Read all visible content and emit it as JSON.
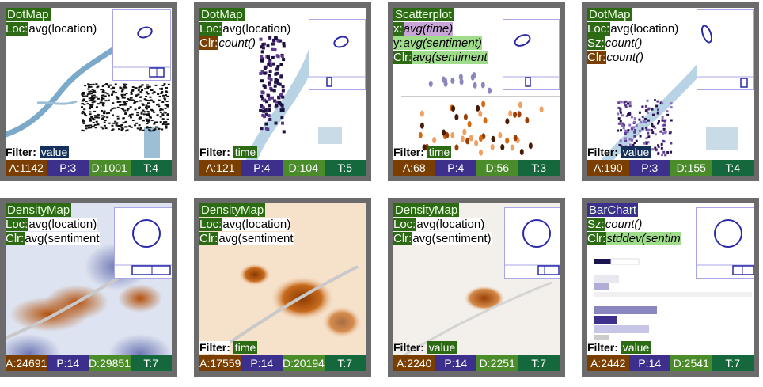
{
  "tiles": [
    {
      "title": "DotMap",
      "enc": [
        {
          "k": "Loc:",
          "v": "avg(location)"
        }
      ],
      "filter": "value",
      "stats": [
        "A:1142",
        "P:3",
        "D:1001",
        "T:4"
      ],
      "kind": "dotmap1"
    },
    {
      "title": "DotMap",
      "enc": [
        {
          "k": "Loc:",
          "v": "avg(location)"
        },
        {
          "k": "Clr:",
          "v": "count()"
        }
      ],
      "filter": "time",
      "stats": [
        "A:121",
        "P:4",
        "D:104",
        "T:5"
      ],
      "kind": "dotmap2"
    },
    {
      "title": "Scatterplot",
      "enc": [
        {
          "k": "x:",
          "v": "avg(time)"
        },
        {
          "k": "y:",
          "v": "avg(sentiment)"
        },
        {
          "k": "Clr:",
          "v": "avg(sentiment"
        }
      ],
      "filter": "time",
      "stats": [
        "A:68",
        "P:4",
        "D:56",
        "T:3"
      ],
      "kind": "scatter"
    },
    {
      "title": "DotMap",
      "enc": [
        {
          "k": "Loc:",
          "v": "avg(location)"
        },
        {
          "k": "Sz:",
          "v": "count()"
        },
        {
          "k": "Clr:",
          "v": "count()"
        }
      ],
      "filter": "value",
      "stats": [
        "A:190",
        "P:3",
        "D:155",
        "T:4"
      ],
      "kind": "dotmap3"
    },
    {
      "title": "DensityMap",
      "enc": [
        {
          "k": "Loc:",
          "v": "avg(location)"
        },
        {
          "k": "Clr:",
          "v": "avg(sentiment"
        }
      ],
      "filter": "",
      "stats": [
        "A:24691",
        "P:14",
        "D:29851",
        "T:7"
      ],
      "kind": "density1"
    },
    {
      "title": "DensityMap",
      "enc": [
        {
          "k": "Loc:",
          "v": "avg(location)"
        },
        {
          "k": "Clr:",
          "v": "avg(sentiment"
        }
      ],
      "filter": "time",
      "stats": [
        "A:17559",
        "P:14",
        "D:20194",
        "T:7"
      ],
      "kind": "density2"
    },
    {
      "title": "DensityMap",
      "enc": [
        {
          "k": "Loc:",
          "v": "avg(location)"
        },
        {
          "k": "Clr:",
          "v": "avg(sentiment)"
        }
      ],
      "filter": "value",
      "stats": [
        "A:2240",
        "P:14",
        "D:2251",
        "T:7"
      ],
      "kind": "density3"
    },
    {
      "title": "BarChart",
      "enc": [
        {
          "k": "Sz:",
          "v": "count()"
        },
        {
          "k": "Clr:",
          "v": "stddev(sentim"
        }
      ],
      "filter": "value",
      "stats": [
        "A:2442",
        "P:14",
        "D:2541",
        "T:7"
      ],
      "kind": "bar"
    }
  ],
  "filter_label": "Filter:",
  "colors": {
    "frame": "#6b6b6b",
    "title_bg": "#2d6a14",
    "stat_A": "#7a3e00",
    "stat_P": "#3d2f8c",
    "stat_D": "#4a8c2a",
    "stat_T": "#14683c",
    "thumb": "#2a2aa8"
  }
}
